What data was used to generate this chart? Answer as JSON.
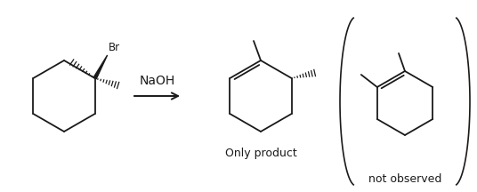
{
  "bg_color": "#ffffff",
  "line_color": "#1a1a1a",
  "naoh_text": "NaOH",
  "only_product_text": "Only product",
  "not_observed_text": "not observed",
  "br_text": "Br",
  "font_size_label": 9,
  "font_size_reagent": 10
}
